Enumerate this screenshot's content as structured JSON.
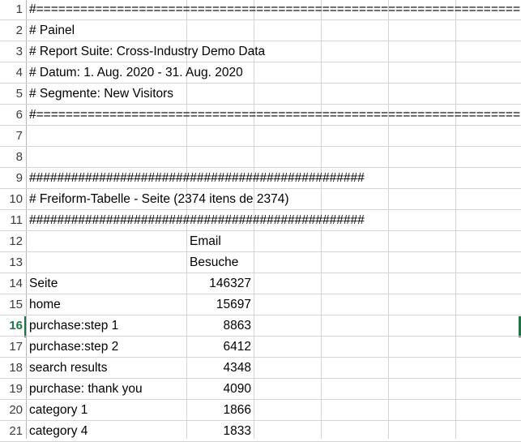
{
  "rows": [
    {
      "n": "1",
      "a": "#==================================================================",
      "b": ""
    },
    {
      "n": "2",
      "a": "# Painel",
      "b": ""
    },
    {
      "n": "3",
      "a": "# Report Suite: Cross-Industry Demo Data",
      "b": ""
    },
    {
      "n": "4",
      "a": "# Datum: 1. Aug. 2020 - 31. Aug. 2020",
      "b": ""
    },
    {
      "n": "5",
      "a": "# Segmente: New Visitors",
      "b": ""
    },
    {
      "n": "6",
      "a": "#==================================================================",
      "b": ""
    },
    {
      "n": "7",
      "a": "",
      "b": ""
    },
    {
      "n": "8",
      "a": "",
      "b": ""
    },
    {
      "n": "9",
      "a": "################################################",
      "b": ""
    },
    {
      "n": "10",
      "a": "# Freiform-Tabelle - Seite (2374 itens de 2374)",
      "b": ""
    },
    {
      "n": "11",
      "a": "################################################",
      "b": ""
    },
    {
      "n": "12",
      "a": "",
      "b": "Email"
    },
    {
      "n": "13",
      "a": "",
      "b": "Besuche"
    },
    {
      "n": "14",
      "a": "Seite",
      "b": "146327",
      "num": true
    },
    {
      "n": "15",
      "a": "home",
      "b": "15697",
      "num": true
    },
    {
      "n": "16",
      "a": "purchase:step 1",
      "b": "8863",
      "num": true,
      "active": true
    },
    {
      "n": "17",
      "a": "purchase:step 2",
      "b": "6412",
      "num": true
    },
    {
      "n": "18",
      "a": "search results",
      "b": "4348",
      "num": true
    },
    {
      "n": "19",
      "a": "purchase: thank you",
      "b": "4090",
      "num": true
    },
    {
      "n": "20",
      "a": "category 1",
      "b": "1866",
      "num": true
    },
    {
      "n": "21",
      "a": "category 4",
      "b": "1833",
      "num": true
    }
  ],
  "selection": {
    "row": "16"
  }
}
